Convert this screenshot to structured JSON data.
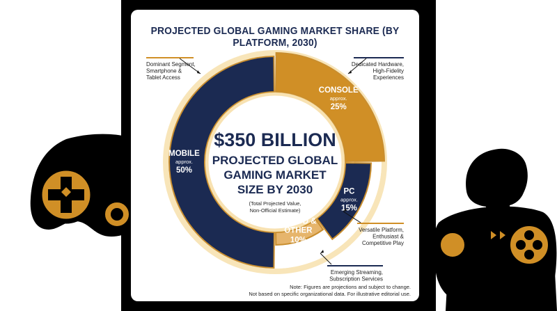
{
  "colors": {
    "navy": "#1b2a52",
    "gold": "#d08f26",
    "light_gold": "#e6b56c",
    "gold_stroke": "#c98e2f",
    "glow": "#f3cf7f",
    "background": "#000000"
  },
  "chart_data": {
    "type": "pie",
    "title": "PROJECTED GLOBAL GAMING MARKET SHARE (BY PLATFORM, 2030)",
    "center": {
      "value": "$350 BILLION",
      "line1": "PROJECTED GLOBAL",
      "line2": "GAMING MARKET",
      "line3": "SIZE BY 2030",
      "note1": "(Total Projected Value,",
      "note2": "Non-Official Estimate)"
    },
    "slices": [
      {
        "name": "CONSOLE",
        "approx": "approx.",
        "pct_label": "25%",
        "value": 25,
        "annotation": [
          "Dedicated Hardware,",
          "High-Fidelity",
          "Experiences"
        ]
      },
      {
        "name": "PC",
        "approx": "approx.",
        "pct_label": "15%",
        "value": 15,
        "annotation": [
          "Versatile Platform,",
          "Enthusiast &",
          "Competitive Play"
        ]
      },
      {
        "name": "CLOUD & OTHER",
        "name_lines": [
          "CLOUD &",
          "OTHER"
        ],
        "pct_label": "10%",
        "value": 10,
        "annotation": [
          "Emerging Streaming,",
          "Subscription Services"
        ]
      },
      {
        "name": "MOBILE",
        "approx": "approx.",
        "pct_label": "50%",
        "value": 50,
        "annotation": [
          "Dominant Segment,",
          "Smartphone &",
          "Tablet Access"
        ]
      }
    ]
  },
  "footnote": {
    "line1": "Note: Figures are projections and subject to change.",
    "line2": "Not based on specific organizational data. For illustrative editorial use."
  },
  "decorations": [
    "gamepad-left-icon",
    "gamepad-right-icon",
    "gamer-silhouette-icon"
  ]
}
